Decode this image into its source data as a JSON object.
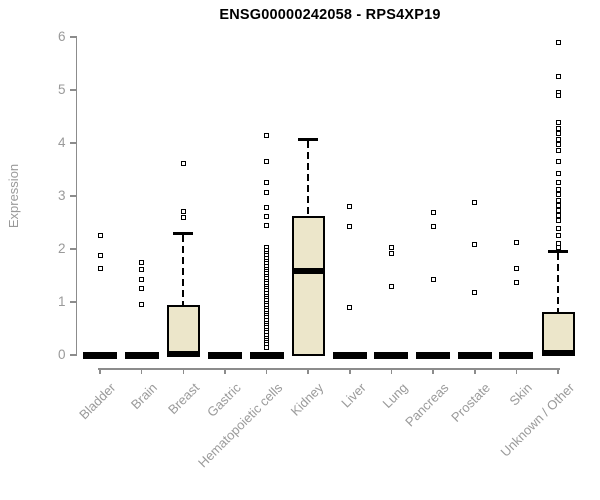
{
  "chart_data": {
    "type": "boxplot",
    "title": "ENSG00000242058 - RPS4XP19",
    "xlabel": "",
    "ylabel": "Expression",
    "ylim": [
      0,
      6
    ],
    "yticks": [
      0,
      1,
      2,
      3,
      4,
      5,
      6
    ],
    "grid": false,
    "legend": false,
    "colors": {
      "box_fill": "#ECE6CA",
      "box_stroke": "#000000",
      "axis": "#8C8C8C",
      "tick_label": "#9A9A9A",
      "title": "#000000"
    },
    "categories": [
      {
        "label": "Bladder",
        "q1": 0,
        "median": 0,
        "q3": 0,
        "whisker_high": null,
        "outliers": [
          2.26,
          1.87,
          1.64
        ]
      },
      {
        "label": "Brain",
        "q1": 0,
        "median": 0,
        "q3": 0,
        "whisker_high": null,
        "outliers": [
          1.74,
          1.62,
          1.43,
          1.26,
          0.96
        ]
      },
      {
        "label": "Breast",
        "q1": 0,
        "median": 0.02,
        "q3": 0.92,
        "whisker_high": 2.3,
        "outliers": [
          3.62,
          2.7,
          2.6
        ]
      },
      {
        "label": "Gastric",
        "q1": 0,
        "median": 0,
        "q3": 0,
        "whisker_high": null,
        "outliers": []
      },
      {
        "label": "Hematopoietic cells",
        "q1": 0,
        "median": 0,
        "q3": 0,
        "whisker_high": null,
        "outliers": [
          4.15,
          3.65,
          3.26,
          3.06,
          2.78,
          2.61,
          2.45,
          2.02,
          1.97,
          1.92,
          1.87,
          1.82,
          1.77,
          1.72,
          1.67,
          1.62,
          1.58,
          1.53,
          1.48,
          1.44,
          1.39,
          1.35,
          1.3,
          1.25,
          1.21,
          1.16,
          1.11,
          1.07,
          1.02,
          0.97,
          0.93,
          0.88,
          0.84,
          0.79,
          0.74,
          0.7,
          0.65,
          0.6,
          0.56,
          0.51,
          0.46,
          0.42,
          0.37,
          0.32,
          0.28,
          0.23,
          0.19,
          0.14
        ]
      },
      {
        "label": "Kidney",
        "q1": 0,
        "median": 1.58,
        "q3": 2.61,
        "whisker_high": 4.07,
        "outliers": []
      },
      {
        "label": "Liver",
        "q1": 0,
        "median": 0,
        "q3": 0,
        "whisker_high": null,
        "outliers": [
          2.81,
          2.42,
          0.89
        ]
      },
      {
        "label": "Lung",
        "q1": 0,
        "median": 0,
        "q3": 0,
        "whisker_high": null,
        "outliers": [
          2.02,
          1.92,
          1.3
        ]
      },
      {
        "label": "Pancreas",
        "q1": 0,
        "median": 0,
        "q3": 0,
        "whisker_high": null,
        "outliers": [
          2.68,
          2.42,
          1.42
        ]
      },
      {
        "label": "Prostate",
        "q1": 0,
        "median": 0,
        "q3": 0,
        "whisker_high": null,
        "outliers": [
          2.87,
          2.08,
          1.17
        ]
      },
      {
        "label": "Skin",
        "q1": 0,
        "median": 0,
        "q3": 0,
        "whisker_high": null,
        "outliers": [
          2.13,
          1.64,
          1.36
        ]
      },
      {
        "label": "Unknown / Other",
        "q1": 0,
        "median": 0.03,
        "q3": 0.79,
        "whisker_high": 1.95,
        "outliers": [
          5.9,
          5.25,
          4.96,
          4.9,
          4.38,
          4.28,
          4.17,
          4.07,
          3.98,
          3.85,
          3.65,
          3.43,
          3.25,
          3.12,
          3.02,
          2.92,
          2.83,
          2.73,
          2.63,
          2.53,
          2.38,
          2.25,
          2.1,
          2.02
        ]
      }
    ]
  }
}
